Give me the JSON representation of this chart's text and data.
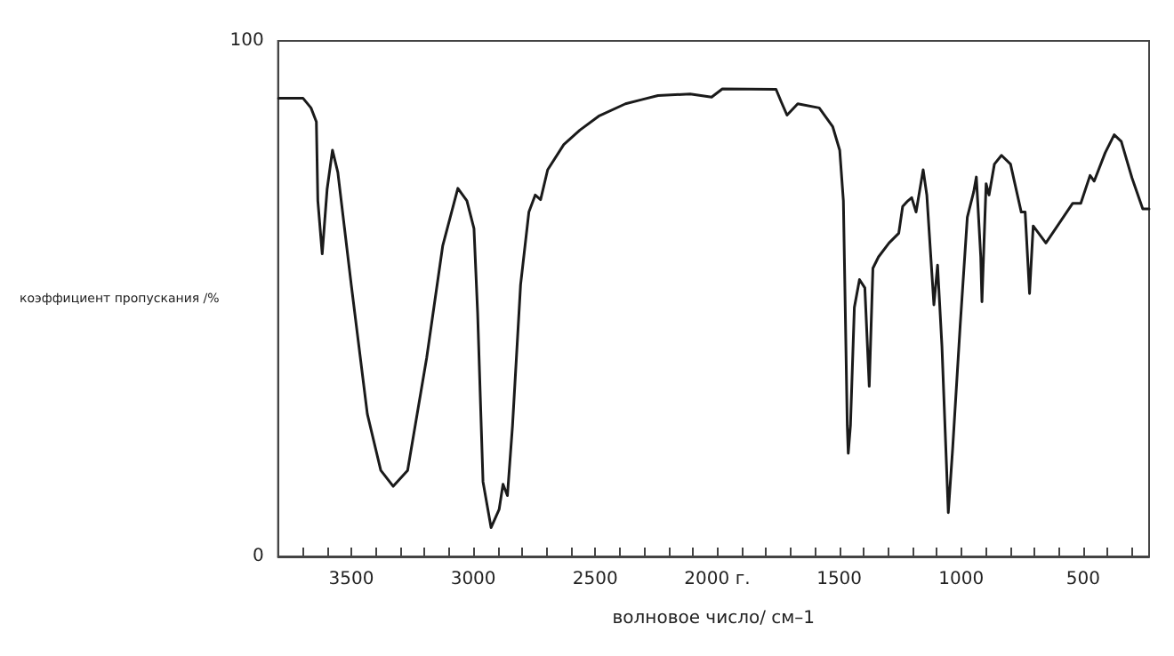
{
  "chart_data": {
    "type": "line",
    "xlabel": "волновое число/ см–1",
    "ylabel": "коэффициент пропускания /%",
    "xlim": [
      3800,
      230
    ],
    "ylim": [
      0,
      100
    ],
    "yticks": [
      0,
      100
    ],
    "xticks": [
      {
        "value": 3800,
        "label": null
      },
      {
        "value": 3700,
        "label": null
      },
      {
        "value": 3600,
        "label": null
      },
      3500,
      {
        "value": 3400,
        "label": null
      },
      {
        "value": 3300,
        "label": null
      },
      {
        "value": 3200,
        "label": null
      },
      {
        "value": 3100,
        "label": null
      },
      3000,
      {
        "value": 2900,
        "label": null
      },
      {
        "value": 2800,
        "label": null
      },
      {
        "value": 2700,
        "label": null
      },
      {
        "value": 2600,
        "label": null
      },
      2500,
      {
        "value": 2400,
        "label": null
      },
      {
        "value": 2300,
        "label": null
      },
      {
        "value": 2200,
        "label": null
      },
      {
        "value": 2100,
        "label": null
      },
      {
        "value": 2000,
        "label": "2000 г."
      },
      {
        "value": 1900,
        "label": null
      },
      {
        "value": 1800,
        "label": null
      },
      {
        "value": 1700,
        "label": null
      },
      {
        "value": 1600,
        "label": null
      },
      1500,
      {
        "value": 1400,
        "label": null
      },
      {
        "value": 1300,
        "label": null
      },
      {
        "value": 1200,
        "label": null
      },
      {
        "value": 1100,
        "label": null
      },
      1000,
      {
        "value": 900,
        "label": null
      },
      {
        "value": 800,
        "label": null
      },
      {
        "value": 700,
        "label": null
      },
      {
        "value": 600,
        "label": null
      },
      500,
      {
        "value": 400,
        "label": null
      },
      {
        "value": 300,
        "label": null
      }
    ],
    "marker": "none",
    "line_style": "solid",
    "series": [
      {
        "color": "#1a1a1a",
        "x": [
          3798,
          3698,
          3665,
          3643,
          3637,
          3619,
          3599,
          3577,
          3555,
          3500,
          3434,
          3379,
          3328,
          3269,
          3191,
          3125,
          3063,
          3026,
          2997,
          2982,
          2960,
          2927,
          2894,
          2878,
          2860,
          2839,
          2806,
          2772,
          2746,
          2724,
          2695,
          2629,
          2563,
          2486,
          2376,
          2310,
          2243,
          2111,
          2023,
          1979,
          1759,
          1737,
          1714,
          1670,
          1582,
          1527,
          1498,
          1483,
          1467,
          1463,
          1454,
          1438,
          1417,
          1395,
          1377,
          1362,
          1339,
          1296,
          1256,
          1240,
          1218,
          1203,
          1185,
          1156,
          1141,
          1112,
          1097,
          1079,
          1053,
          1035,
          1004,
          975,
          949,
          938,
          920,
          915,
          907,
          898,
          886,
          864,
          835,
          798,
          754,
          738,
          720,
          705,
          653,
          543,
          510,
          472,
          455,
          410,
          373,
          344,
          300,
          256,
          230
        ],
        "values": [
          88.9,
          88.9,
          87.0,
          84.3,
          69.0,
          58.7,
          71.2,
          78.8,
          74.5,
          52.7,
          27.6,
          16.7,
          13.6,
          16.7,
          38.5,
          60.3,
          71.4,
          69.0,
          63.6,
          47.2,
          14.5,
          5.6,
          9.1,
          14.0,
          11.8,
          25.4,
          52.7,
          66.8,
          70.1,
          69.2,
          75.0,
          79.9,
          82.7,
          85.4,
          87.8,
          88.6,
          89.4,
          89.7,
          89.1,
          90.7,
          90.6,
          88.1,
          85.6,
          87.8,
          87.0,
          83.4,
          78.8,
          69.0,
          25.4,
          20.0,
          25.4,
          48.3,
          53.7,
          52.1,
          33.0,
          55.9,
          58.1,
          60.8,
          62.7,
          67.9,
          69.0,
          69.6,
          66.8,
          75.0,
          70.1,
          48.8,
          56.5,
          40.7,
          8.5,
          21.0,
          45.0,
          65.8,
          70.7,
          73.6,
          58.1,
          49.4,
          60.3,
          72.3,
          70.1,
          76.1,
          77.8,
          76.1,
          66.8,
          66.8,
          51.0,
          64.1,
          60.8,
          68.5,
          68.5,
          73.9,
          72.8,
          78.3,
          81.8,
          80.5,
          73.4,
          67.4,
          67.4
        ]
      }
    ]
  }
}
